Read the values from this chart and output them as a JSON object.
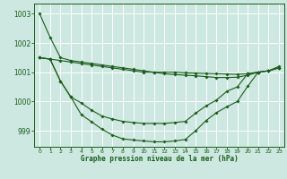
{
  "title": "Graphe pression niveau de la mer (hPa)",
  "bg_color": "#cce8e0",
  "grid_color": "#ffffff",
  "line_color": "#1a5c1a",
  "xlim": [
    -0.5,
    23.5
  ],
  "ylim": [
    998.45,
    1003.35
  ],
  "yticks": [
    999,
    1000,
    1001,
    1002,
    1003
  ],
  "xticks": [
    0,
    1,
    2,
    3,
    4,
    5,
    6,
    7,
    8,
    9,
    10,
    11,
    12,
    13,
    14,
    15,
    16,
    17,
    18,
    19,
    20,
    21,
    22,
    23
  ],
  "series": [
    [
      1003.0,
      1002.2,
      1001.5,
      1001.4,
      1001.35,
      1001.3,
      1001.25,
      1001.2,
      1001.15,
      1001.1,
      1001.05,
      1001.0,
      1000.95,
      1000.92,
      1000.9,
      1000.88,
      1000.85,
      1000.82,
      1000.82,
      1000.83,
      1000.9,
      1001.0,
      1001.05,
      1001.2
    ],
    [
      1001.5,
      1001.45,
      1001.4,
      1001.35,
      1001.3,
      1001.25,
      1001.2,
      1001.15,
      1001.1,
      1001.05,
      1001.0,
      1001.0,
      1001.0,
      1001.0,
      1000.98,
      1000.97,
      1000.96,
      1000.95,
      1000.94,
      1000.93,
      1000.95,
      1001.0,
      1001.05,
      1001.15
    ],
    [
      1001.5,
      1001.45,
      1000.7,
      1000.15,
      999.95,
      999.7,
      999.5,
      999.4,
      999.32,
      999.28,
      999.25,
      999.25,
      999.25,
      999.28,
      999.32,
      999.6,
      999.85,
      1000.05,
      1000.35,
      1000.5,
      1000.95,
      1001.0,
      1001.05,
      1001.15
    ],
    [
      1001.5,
      1001.45,
      1000.7,
      1000.15,
      999.55,
      999.3,
      999.05,
      998.85,
      998.72,
      998.68,
      998.65,
      998.62,
      998.62,
      998.65,
      998.7,
      999.0,
      999.35,
      999.62,
      999.82,
      1000.0,
      1000.52,
      1001.0,
      1001.05,
      1001.15
    ]
  ]
}
